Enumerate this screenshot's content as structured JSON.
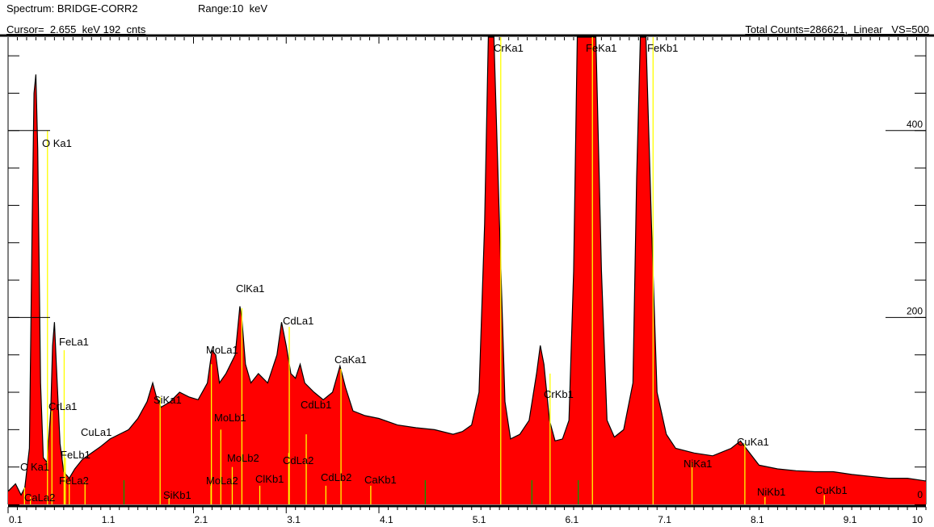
{
  "header": {
    "spectrum": "Spectrum: BRIDGE-CORR2",
    "range": "Range:10  keV",
    "cursor": "Cursor=  2.655  keV 192  cnts",
    "total": "Total Counts=286621,  Linear   VS=500"
  },
  "chart_data": {
    "type": "area",
    "xlim": [
      0.1,
      10.0
    ],
    "ylim": [
      0,
      500
    ],
    "x_tick_labels": [
      "0.1",
      "1.1",
      "2.1",
      "3.1",
      "4.1",
      "5.1",
      "6.1",
      "7.1",
      "8.1",
      "9.1",
      "10"
    ],
    "x_ticks": [
      0.1,
      1.1,
      2.1,
      3.1,
      4.1,
      5.1,
      6.1,
      7.1,
      8.1,
      9.1,
      10.0
    ],
    "y_tick_labels": [
      "400",
      "200",
      "0"
    ],
    "y_ticks": [
      400,
      200,
      0
    ],
    "fill_color": "#ff0000",
    "line_color": "#000000",
    "marker_color": "#ffff00",
    "minor_marker_color": "#00a000",
    "spectrum": [
      [
        0.1,
        14
      ],
      [
        0.18,
        22
      ],
      [
        0.24,
        10
      ],
      [
        0.28,
        18
      ],
      [
        0.33,
        60
      ],
      [
        0.36,
        300
      ],
      [
        0.38,
        440
      ],
      [
        0.4,
        460
      ],
      [
        0.42,
        380
      ],
      [
        0.45,
        130
      ],
      [
        0.48,
        50
      ],
      [
        0.52,
        45
      ],
      [
        0.56,
        100
      ],
      [
        0.58,
        170
      ],
      [
        0.6,
        195
      ],
      [
        0.62,
        150
      ],
      [
        0.66,
        65
      ],
      [
        0.7,
        35
      ],
      [
        0.76,
        28
      ],
      [
        0.82,
        38
      ],
      [
        0.9,
        48
      ],
      [
        1.0,
        55
      ],
      [
        1.1,
        62
      ],
      [
        1.2,
        70
      ],
      [
        1.3,
        75
      ],
      [
        1.4,
        80
      ],
      [
        1.5,
        92
      ],
      [
        1.6,
        110
      ],
      [
        1.66,
        130
      ],
      [
        1.7,
        115
      ],
      [
        1.75,
        104
      ],
      [
        1.85,
        110
      ],
      [
        1.95,
        120
      ],
      [
        2.05,
        115
      ],
      [
        2.15,
        112
      ],
      [
        2.25,
        130
      ],
      [
        2.3,
        165
      ],
      [
        2.34,
        160
      ],
      [
        2.38,
        130
      ],
      [
        2.45,
        140
      ],
      [
        2.55,
        160
      ],
      [
        2.6,
        212
      ],
      [
        2.62,
        200
      ],
      [
        2.66,
        150
      ],
      [
        2.72,
        130
      ],
      [
        2.8,
        140
      ],
      [
        2.9,
        130
      ],
      [
        3.0,
        160
      ],
      [
        3.05,
        195
      ],
      [
        3.1,
        170
      ],
      [
        3.15,
        140
      ],
      [
        3.2,
        135
      ],
      [
        3.25,
        150
      ],
      [
        3.3,
        130
      ],
      [
        3.4,
        120
      ],
      [
        3.5,
        112
      ],
      [
        3.6,
        120
      ],
      [
        3.68,
        148
      ],
      [
        3.74,
        125
      ],
      [
        3.82,
        100
      ],
      [
        3.95,
        95
      ],
      [
        4.1,
        92
      ],
      [
        4.3,
        85
      ],
      [
        4.5,
        82
      ],
      [
        4.7,
        80
      ],
      [
        4.9,
        75
      ],
      [
        5.0,
        78
      ],
      [
        5.1,
        85
      ],
      [
        5.18,
        120
      ],
      [
        5.24,
        300
      ],
      [
        5.28,
        520
      ],
      [
        5.34,
        520
      ],
      [
        5.4,
        300
      ],
      [
        5.46,
        110
      ],
      [
        5.52,
        70
      ],
      [
        5.62,
        75
      ],
      [
        5.72,
        90
      ],
      [
        5.8,
        140
      ],
      [
        5.84,
        170
      ],
      [
        5.88,
        150
      ],
      [
        5.94,
        90
      ],
      [
        6.0,
        68
      ],
      [
        6.08,
        70
      ],
      [
        6.15,
        90
      ],
      [
        6.2,
        250
      ],
      [
        6.24,
        520
      ],
      [
        6.44,
        520
      ],
      [
        6.5,
        250
      ],
      [
        6.56,
        90
      ],
      [
        6.64,
        72
      ],
      [
        6.74,
        80
      ],
      [
        6.84,
        130
      ],
      [
        6.88,
        350
      ],
      [
        6.92,
        520
      ],
      [
        6.98,
        520
      ],
      [
        7.04,
        300
      ],
      [
        7.1,
        120
      ],
      [
        7.2,
        75
      ],
      [
        7.3,
        60
      ],
      [
        7.5,
        55
      ],
      [
        7.7,
        52
      ],
      [
        7.9,
        60
      ],
      [
        8.0,
        68
      ],
      [
        8.06,
        60
      ],
      [
        8.2,
        42
      ],
      [
        8.4,
        38
      ],
      [
        8.6,
        36
      ],
      [
        8.8,
        35
      ],
      [
        9.0,
        35
      ],
      [
        9.2,
        32
      ],
      [
        9.4,
        30
      ],
      [
        9.6,
        28
      ],
      [
        9.8,
        28
      ],
      [
        10.0,
        25
      ]
    ],
    "lines": [
      {
        "name": "C Ka1",
        "energy": 0.277,
        "height": 18,
        "color": "#ffff00"
      },
      {
        "name": "CaLa2",
        "energy": 0.341,
        "height": 8,
        "color": "#ffff00"
      },
      {
        "name": "O Ka1",
        "energy": 0.525,
        "height": 400,
        "color": "#ffff00"
      },
      {
        "name": "CrLa1",
        "energy": 0.573,
        "height": 100,
        "color": "#ffff00"
      },
      {
        "name": "FeLa1",
        "energy": 0.705,
        "height": 165,
        "color": "#ffff00"
      },
      {
        "name": "FeLb1",
        "energy": 0.718,
        "height": 50,
        "color": "#ffff00"
      },
      {
        "name": "FeLa2",
        "energy": 0.76,
        "height": 25,
        "color": "#ffff00"
      },
      {
        "name": "CuLa1",
        "energy": 0.93,
        "height": 25,
        "color": "#ffff00"
      },
      {
        "name": "SiKa1",
        "energy": 1.74,
        "height": 115,
        "color": "#ffff00"
      },
      {
        "name": "SiKb1",
        "energy": 1.836,
        "height": 8,
        "color": "#ffff00"
      },
      {
        "name": "MoLa1",
        "energy": 2.293,
        "height": 150,
        "color": "#ffff00"
      },
      {
        "name": "MoLb1",
        "energy": 2.395,
        "height": 80,
        "color": "#ffff00"
      },
      {
        "name": "MoLb2",
        "energy": 2.518,
        "height": 40,
        "color": "#ffff00"
      },
      {
        "name": "MoLa2",
        "energy": 2.289,
        "height": 20,
        "color": "#ffff00"
      },
      {
        "name": "ClKa1",
        "energy": 2.622,
        "height": 210,
        "color": "#ffff00"
      },
      {
        "name": "ClKb1",
        "energy": 2.815,
        "height": 20,
        "color": "#ffff00"
      },
      {
        "name": "CdLa1",
        "energy": 3.133,
        "height": 190,
        "color": "#ffff00"
      },
      {
        "name": "CdLa2",
        "energy": 3.127,
        "height": 55,
        "color": "#ffff00"
      },
      {
        "name": "CdLb1",
        "energy": 3.316,
        "height": 75,
        "color": "#ffff00"
      },
      {
        "name": "CdLb2",
        "energy": 3.528,
        "height": 20,
        "color": "#ffff00"
      },
      {
        "name": "CaKa1",
        "energy": 3.691,
        "height": 145,
        "color": "#ffff00"
      },
      {
        "name": "CaKb1",
        "energy": 4.012,
        "height": 20,
        "color": "#ffff00"
      },
      {
        "name": "CrKa1",
        "energy": 5.414,
        "height": 520,
        "color": "#ffff00"
      },
      {
        "name": "CrKb1",
        "energy": 5.946,
        "height": 140,
        "color": "#ffff00"
      },
      {
        "name": "FeKa1",
        "energy": 6.403,
        "height": 520,
        "color": "#ffff00"
      },
      {
        "name": "FeKb1",
        "energy": 7.057,
        "height": 520,
        "color": "#ffff00"
      },
      {
        "name": "NiKa1",
        "energy": 7.477,
        "height": 45,
        "color": "#ffff00"
      },
      {
        "name": "NiKb1",
        "energy": 8.264,
        "height": 8,
        "color": "#ffff00"
      },
      {
        "name": "CuKa1",
        "energy": 8.047,
        "height": 65,
        "color": "#ffff00"
      },
      {
        "name": "CuKb1",
        "energy": 8.904,
        "height": 10,
        "color": "#ffff00"
      }
    ],
    "minor_markers": [
      1.35,
      4.6,
      5.75,
      6.25
    ]
  }
}
